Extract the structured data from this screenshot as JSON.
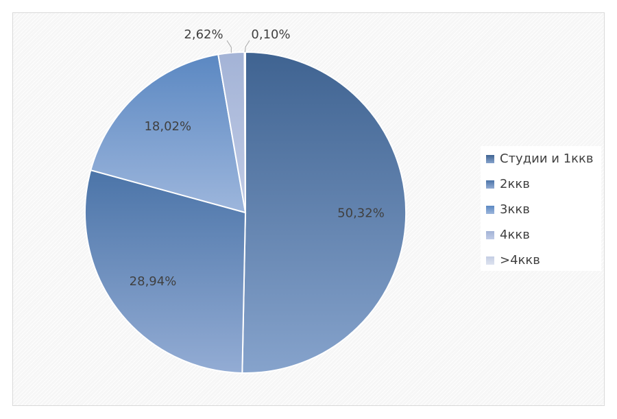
{
  "chart_data": {
    "type": "pie",
    "categories": [
      "Студии и 1ккв",
      "2ккв",
      "3ккв",
      "4ккв",
      ">4ккв"
    ],
    "values": [
      50.32,
      28.94,
      18.02,
      2.62,
      0.1
    ],
    "data_labels": [
      "50,32%",
      "28,94%",
      "18,02%",
      "2,62%",
      "0,10%"
    ],
    "start_angle": "12 o'clock",
    "direction": "clockwise",
    "legend_position": "right",
    "colors": [
      "#3f6391",
      "#4b74a8",
      "#5b88c2",
      "#a3b3d6",
      "#c4cde3"
    ],
    "colors_light": [
      "#86a3cc",
      "#93acd4",
      "#9db6dc",
      "#c0cbe6",
      "#dde3ef"
    ]
  }
}
